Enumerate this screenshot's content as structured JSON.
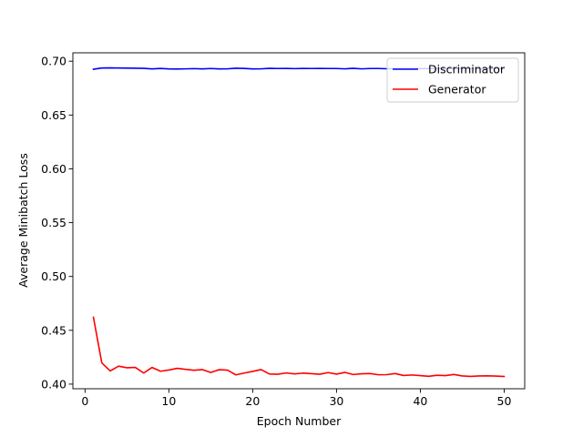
{
  "chart_data": {
    "type": "line",
    "title": "",
    "xlabel": "Epoch Number",
    "ylabel": "Average Minibatch Loss",
    "xlim": [
      -1.45,
      52.45
    ],
    "ylim": [
      0.3957,
      0.7078
    ],
    "xticks": [
      0,
      10,
      20,
      30,
      40,
      50
    ],
    "yticks": [
      0.4,
      0.45,
      0.5,
      0.55,
      0.6,
      0.65,
      0.7
    ],
    "xtick_labels": [
      "0",
      "10",
      "20",
      "30",
      "40",
      "50"
    ],
    "ytick_labels": [
      "0.40",
      "0.45",
      "0.50",
      "0.55",
      "0.60",
      "0.65",
      "0.70"
    ],
    "grid": false,
    "legend": "top-right",
    "x": [
      1,
      2,
      3,
      4,
      5,
      6,
      7,
      8,
      9,
      10,
      11,
      12,
      13,
      14,
      15,
      16,
      17,
      18,
      19,
      20,
      21,
      22,
      23,
      24,
      25,
      26,
      27,
      28,
      29,
      30,
      31,
      32,
      33,
      34,
      35,
      36,
      37,
      38,
      39,
      40,
      41,
      42,
      43,
      44,
      45,
      46,
      47,
      48,
      49,
      50
    ],
    "series": [
      {
        "name": "Discriminator",
        "color": "#0000ff",
        "values": [
          0.6925,
          0.6937,
          0.6938,
          0.6937,
          0.6936,
          0.6935,
          0.6934,
          0.6928,
          0.6933,
          0.6928,
          0.6927,
          0.6929,
          0.6931,
          0.6928,
          0.6932,
          0.6928,
          0.6929,
          0.6935,
          0.6933,
          0.6928,
          0.6929,
          0.6934,
          0.6932,
          0.6933,
          0.6931,
          0.6933,
          0.6932,
          0.6933,
          0.6932,
          0.6932,
          0.6929,
          0.6934,
          0.6929,
          0.6932,
          0.6932,
          0.693,
          0.6931,
          0.6932,
          0.6932,
          0.6931,
          0.6932,
          0.6933,
          0.6932,
          0.6931,
          0.6932,
          0.6932,
          0.6931,
          0.6932,
          0.6932,
          0.6931
        ]
      },
      {
        "name": "Generator",
        "color": "#ff0000",
        "values": [
          0.4622,
          0.4198,
          0.4122,
          0.4167,
          0.4152,
          0.4155,
          0.4103,
          0.4155,
          0.412,
          0.4131,
          0.4147,
          0.4137,
          0.4129,
          0.4135,
          0.4108,
          0.4134,
          0.413,
          0.4086,
          0.4103,
          0.4118,
          0.4135,
          0.4094,
          0.4092,
          0.4104,
          0.4095,
          0.4102,
          0.4097,
          0.4092,
          0.4107,
          0.4093,
          0.4109,
          0.4089,
          0.4096,
          0.4098,
          0.4087,
          0.4088,
          0.4098,
          0.408,
          0.4085,
          0.4079,
          0.4073,
          0.4082,
          0.4079,
          0.409,
          0.4076,
          0.4072,
          0.4076,
          0.4077,
          0.4075,
          0.4071
        ]
      }
    ]
  }
}
